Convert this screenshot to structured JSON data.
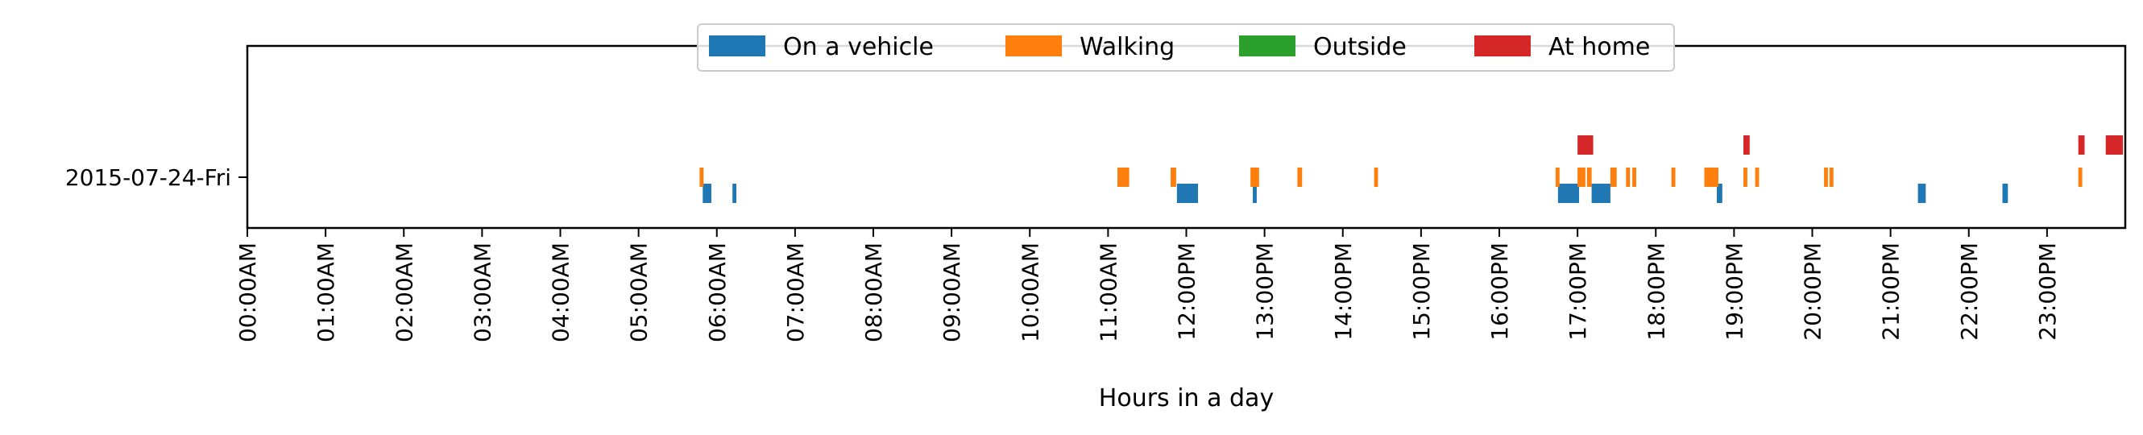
{
  "chart_data": {
    "type": "timeline",
    "xlabel": "Hours in a day",
    "xlim": [
      0,
      24
    ],
    "x_ticks": [
      0,
      1,
      2,
      3,
      4,
      5,
      6,
      7,
      8,
      9,
      10,
      11,
      12,
      13,
      14,
      15,
      16,
      17,
      18,
      19,
      20,
      21,
      22,
      23
    ],
    "x_tick_labels": [
      "00:00AM",
      "01:00AM",
      "02:00AM",
      "03:00AM",
      "04:00AM",
      "05:00AM",
      "06:00AM",
      "07:00AM",
      "08:00AM",
      "09:00AM",
      "10:00AM",
      "11:00AM",
      "12:00PM",
      "13:00PM",
      "14:00PM",
      "15:00PM",
      "16:00PM",
      "17:00PM",
      "18:00PM",
      "19:00PM",
      "20:00PM",
      "21:00PM",
      "22:00PM",
      "23:00PM"
    ],
    "y_categories": [
      "2015-07-24-Fri"
    ],
    "legend_position": "top-center",
    "series": [
      {
        "name": "On a vehicle",
        "color": "#1f77b4",
        "intervals": [
          [
            5.82,
            5.93
          ],
          [
            6.2,
            6.25
          ],
          [
            11.88,
            12.15
          ],
          [
            12.85,
            12.9
          ],
          [
            16.75,
            17.02
          ],
          [
            17.18,
            17.42
          ],
          [
            18.78,
            18.85
          ],
          [
            21.35,
            21.45
          ],
          [
            22.43,
            22.5
          ]
        ]
      },
      {
        "name": "Walking",
        "color": "#ff7f0e",
        "intervals": [
          [
            5.78,
            5.83
          ],
          [
            11.12,
            11.27
          ],
          [
            11.8,
            11.87
          ],
          [
            12.82,
            12.93
          ],
          [
            13.42,
            13.48
          ],
          [
            14.4,
            14.45
          ],
          [
            16.72,
            16.77
          ],
          [
            17.0,
            17.1
          ],
          [
            17.12,
            17.18
          ],
          [
            17.42,
            17.5
          ],
          [
            17.62,
            17.67
          ],
          [
            17.7,
            17.75
          ],
          [
            18.2,
            18.25
          ],
          [
            18.62,
            18.8
          ],
          [
            19.12,
            19.17
          ],
          [
            19.27,
            19.32
          ],
          [
            20.15,
            20.2
          ],
          [
            20.22,
            20.27
          ],
          [
            23.4,
            23.45
          ]
        ]
      },
      {
        "name": "Outside",
        "color": "#2ca02c",
        "intervals": []
      },
      {
        "name": "At home",
        "color": "#d62728",
        "intervals": [
          [
            17.0,
            17.2
          ],
          [
            19.12,
            19.2
          ],
          [
            23.4,
            23.48
          ],
          [
            23.75,
            23.97
          ]
        ]
      }
    ]
  }
}
